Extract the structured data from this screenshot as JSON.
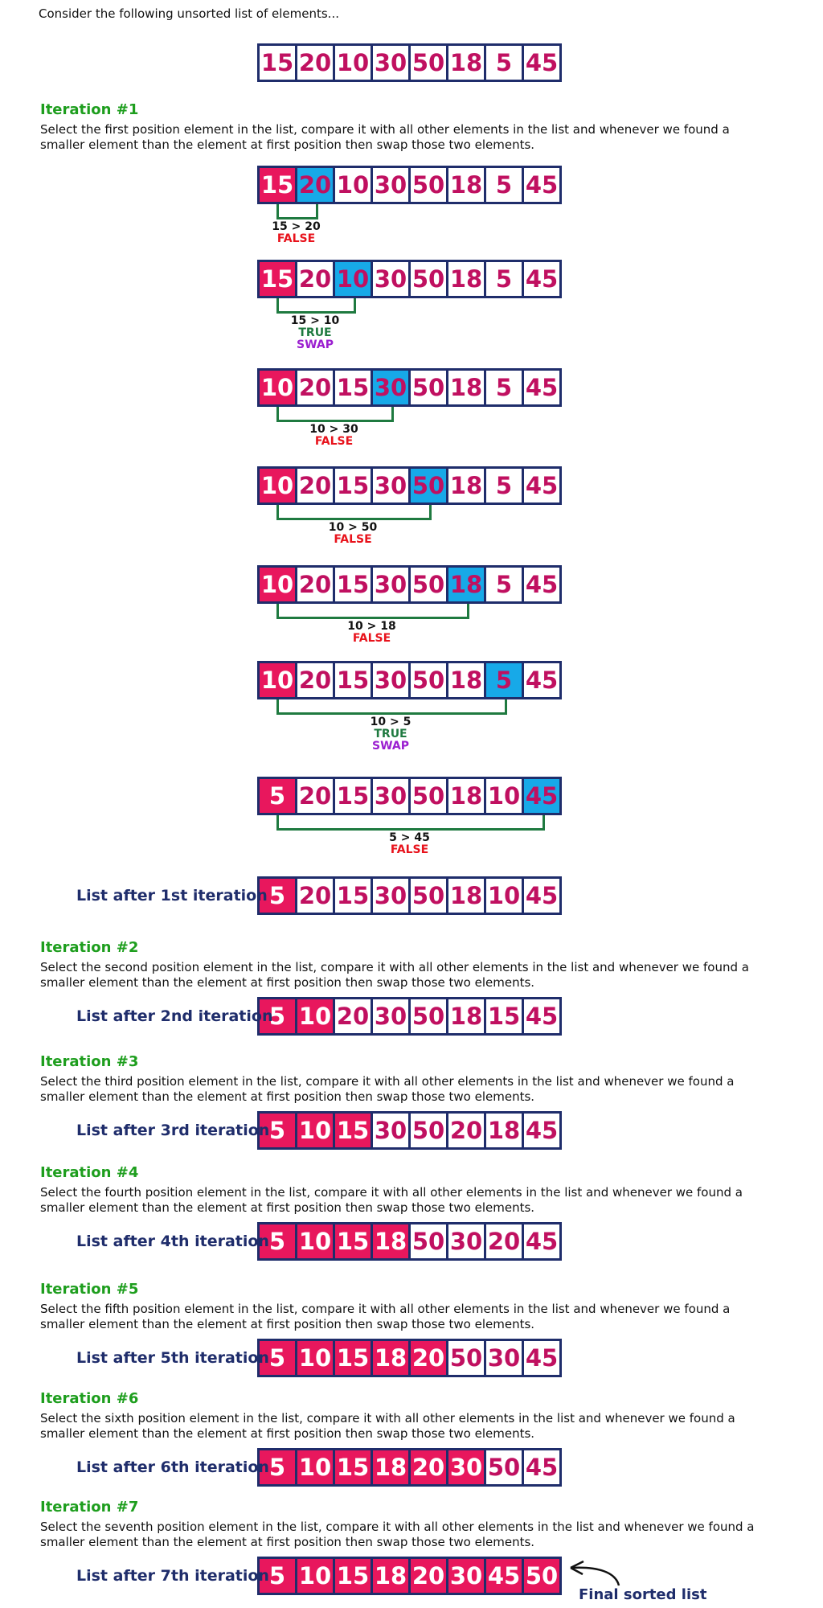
{
  "intro": "Consider the following unsorted list of elements...",
  "initial": [
    "15",
    "20",
    "10",
    "30",
    "50",
    "18",
    "5",
    "45"
  ],
  "iteration1": {
    "heading": "Iteration #1",
    "description": "Select the first position element in the list, compare it with all other elements in the list and whenever we found a smaller element than the element at first position then swap those two elements.",
    "steps": [
      {
        "values": [
          "15",
          "20",
          "10",
          "30",
          "50",
          "18",
          "5",
          "45"
        ],
        "compare_index": 1,
        "expr": "15 > 20",
        "result": "FALSE",
        "swap": ""
      },
      {
        "values": [
          "15",
          "20",
          "10",
          "30",
          "50",
          "18",
          "5",
          "45"
        ],
        "compare_index": 2,
        "expr": "15 > 10",
        "result": "TRUE",
        "swap": "SWAP"
      },
      {
        "values": [
          "10",
          "20",
          "15",
          "30",
          "50",
          "18",
          "5",
          "45"
        ],
        "compare_index": 3,
        "expr": "10 > 30",
        "result": "FALSE",
        "swap": ""
      },
      {
        "values": [
          "10",
          "20",
          "15",
          "30",
          "50",
          "18",
          "5",
          "45"
        ],
        "compare_index": 4,
        "expr": "10 > 50",
        "result": "FALSE",
        "swap": ""
      },
      {
        "values": [
          "10",
          "20",
          "15",
          "30",
          "50",
          "18",
          "5",
          "45"
        ],
        "compare_index": 5,
        "expr": "10 > 18",
        "result": "FALSE",
        "swap": ""
      },
      {
        "values": [
          "10",
          "20",
          "15",
          "30",
          "50",
          "18",
          "5",
          "45"
        ],
        "compare_index": 6,
        "expr": "10 > 5",
        "result": "TRUE",
        "swap": "SWAP"
      },
      {
        "values": [
          "5",
          "20",
          "15",
          "30",
          "50",
          "18",
          "10",
          "45"
        ],
        "compare_index": 7,
        "expr": "5 > 45",
        "result": "FALSE",
        "swap": ""
      }
    ],
    "after_label": "List after 1st iteration",
    "after_values": [
      "5",
      "20",
      "15",
      "30",
      "50",
      "18",
      "10",
      "45"
    ],
    "after_sorted": 1
  },
  "iterations": [
    {
      "heading": "Iteration #2",
      "description": "Select the second position element in the list, compare it with all other elements in the list and whenever we found a smaller element than the element at first position then swap those two elements.",
      "after_label": "List after 2nd iteration",
      "values": [
        "5",
        "10",
        "20",
        "30",
        "50",
        "18",
        "15",
        "45"
      ],
      "sorted": 2
    },
    {
      "heading": "Iteration #3",
      "description": "Select the third position element in the list, compare it with all other elements in the list and whenever we found a smaller element than the element at first position then swap those two elements.",
      "after_label": "List after 3rd iteration",
      "values": [
        "5",
        "10",
        "15",
        "30",
        "50",
        "20",
        "18",
        "45"
      ],
      "sorted": 3
    },
    {
      "heading": "Iteration #4",
      "description": "Select the fourth position element in the list, compare it with all other elements in the list and whenever we found a smaller element than the element at first position then swap those two elements.",
      "after_label": "List after 4th iteration",
      "values": [
        "5",
        "10",
        "15",
        "18",
        "50",
        "30",
        "20",
        "45"
      ],
      "sorted": 4
    },
    {
      "heading": "Iteration #5",
      "description": "Select the fifth position element in the list, compare it with all other elements in the list and whenever we found a smaller element than the element at first position then swap those two elements.",
      "after_label": "List after 5th iteration",
      "values": [
        "5",
        "10",
        "15",
        "18",
        "20",
        "50",
        "30",
        "45"
      ],
      "sorted": 5
    },
    {
      "heading": "Iteration #6",
      "description": "Select the sixth position element in the list, compare it with all other elements in the list and whenever we found a smaller element than the element at first position then swap those two elements.",
      "after_label": "List after 6th iteration",
      "values": [
        "5",
        "10",
        "15",
        "18",
        "20",
        "30",
        "50",
        "45"
      ],
      "sorted": 6
    },
    {
      "heading": "Iteration #7",
      "description": "Select the seventh position element in the list, compare it with all other elements in the list and whenever we found a smaller element than the element at first position then swap those two elements.",
      "after_label": "List after 7th iteration",
      "values": [
        "5",
        "10",
        "15",
        "18",
        "20",
        "30",
        "45",
        "50"
      ],
      "sorted": 8
    }
  ],
  "final_label": "Final sorted list",
  "colors": {
    "pivot": "#e8175d",
    "compare": "#17a9e8",
    "value_text": "#c01060",
    "border": "#1f2d6b",
    "heading": "#1e9e1e",
    "bracket": "#1f7a40",
    "false": "#e8131c",
    "true": "#1f7a40",
    "swap": "#9b1fd0"
  }
}
